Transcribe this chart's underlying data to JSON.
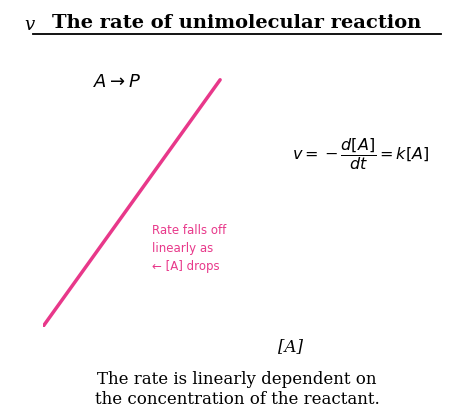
{
  "title": "The rate of unimolecular reaction",
  "title_fontsize": 14,
  "reaction_label": "$A \\rightarrow P$",
  "equation_text": "$v = -\\dfrac{d[A]}{dt} = k[A]$",
  "equation_fontsize": 11.5,
  "annotation_text": "Rate falls off\nlinearly as\n← [A] drops",
  "annotation_fontsize": 8.5,
  "annotation_color": "#e8388a",
  "line_color": "#e8388a",
  "xlabel": "[A]",
  "ylabel": "v",
  "footer_text": "The rate is linearly dependent on\nthe concentration of the reactant.",
  "footer_fontsize": 12,
  "background_color": "#ffffff",
  "axis_color": "#777777"
}
